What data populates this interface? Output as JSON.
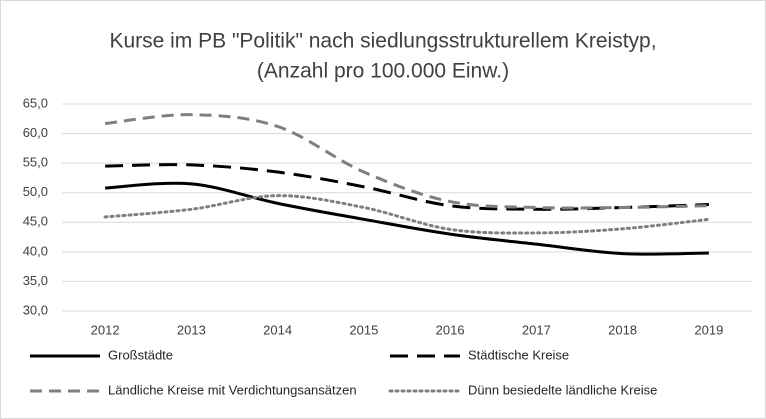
{
  "chart_data": {
    "type": "line",
    "title": [
      "Kurse im PB \"Politik\" nach siedlungsstrukturellem Kreistyp,",
      "(Anzahl pro 100.000 Einw.)"
    ],
    "categories": [
      "2012",
      "2013",
      "2014",
      "2015",
      "2016",
      "2017",
      "2018",
      "2019"
    ],
    "series": [
      {
        "name": "Großstädte",
        "color": "#000000",
        "dash": "solid",
        "values": [
          50.8,
          51.5,
          48.2,
          45.5,
          43.0,
          41.3,
          39.7,
          39.8
        ]
      },
      {
        "name": "Städtische Kreise",
        "color": "#000000",
        "dash": "long-dash",
        "values": [
          54.5,
          54.7,
          53.5,
          51.0,
          47.8,
          47.2,
          47.5,
          48.0
        ]
      },
      {
        "name": "Ländliche Kreise mit Verdichtungsansätzen",
        "color": "#7f7f7f",
        "dash": "dash",
        "values": [
          61.7,
          63.2,
          61.2,
          53.5,
          48.5,
          47.5,
          47.5,
          47.8
        ]
      },
      {
        "name": "Dünn besiedelte ländliche Kreise",
        "color": "#7f7f7f",
        "dash": "dot",
        "values": [
          45.9,
          47.2,
          49.5,
          47.5,
          43.8,
          43.2,
          43.9,
          45.5
        ]
      }
    ],
    "ylim": [
      30,
      65
    ],
    "yticks": [
      {
        "value": 30,
        "label": "30,0"
      },
      {
        "value": 35,
        "label": "35,0"
      },
      {
        "value": 40,
        "label": "40,0"
      },
      {
        "value": 45,
        "label": "45,0"
      },
      {
        "value": 50,
        "label": "50,0"
      },
      {
        "value": 55,
        "label": "55,0"
      },
      {
        "value": 60,
        "label": "60,0"
      },
      {
        "value": 65,
        "label": "65,0"
      }
    ],
    "grid": true,
    "smooth": true,
    "legend": "bottom"
  }
}
